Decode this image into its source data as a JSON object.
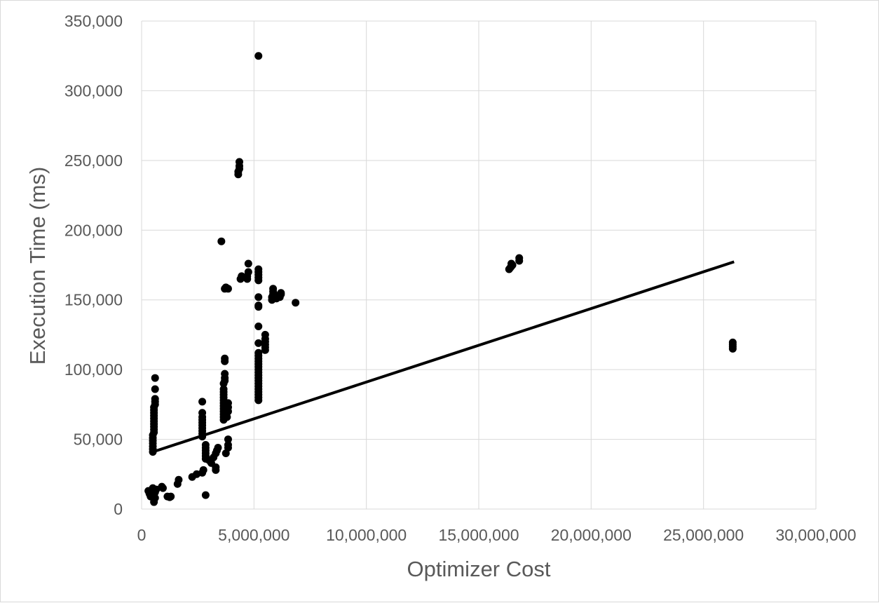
{
  "chart_data": {
    "type": "scatter",
    "title": "",
    "xlabel": "Optimizer Cost",
    "ylabel": "Execution Time (ms)",
    "xlim": [
      0,
      30000000
    ],
    "ylim": [
      0,
      350000
    ],
    "x_ticks": [
      0,
      5000000,
      10000000,
      15000000,
      20000000,
      25000000,
      30000000
    ],
    "x_tick_labels": [
      "0",
      "5,000,000",
      "10,000,000",
      "15,000,000",
      "20,000,000",
      "25,000,000",
      "30,000,000"
    ],
    "y_ticks": [
      0,
      50000,
      100000,
      150000,
      200000,
      250000,
      300000,
      350000
    ],
    "y_tick_labels": [
      "0",
      "50,000",
      "100,000",
      "150,000",
      "200,000",
      "250,000",
      "300,000",
      "350,000"
    ],
    "grid": true,
    "legend": "none",
    "colors": {
      "points": "#000000",
      "trendline": "#000000",
      "grid": "#d9d9d9",
      "text": "#595959"
    },
    "trendline": {
      "type": "linear",
      "points": [
        [
          500000,
          41000
        ],
        [
          26300000,
          177000
        ]
      ]
    },
    "points": [
      [
        300000,
        13000
      ],
      [
        350000,
        11000
      ],
      [
        400000,
        9000
      ],
      [
        450000,
        12000
      ],
      [
        500000,
        10000
      ],
      [
        500000,
        15000
      ],
      [
        550000,
        7000
      ],
      [
        550000,
        5000
      ],
      [
        600000,
        8000
      ],
      [
        650000,
        14000
      ],
      [
        600000,
        12000
      ],
      [
        900000,
        16000
      ],
      [
        950000,
        15000
      ],
      [
        1150000,
        9000
      ],
      [
        1250000,
        8500
      ],
      [
        1300000,
        9000
      ],
      [
        1600000,
        18000
      ],
      [
        1650000,
        21000
      ],
      [
        2250000,
        23000
      ],
      [
        2450000,
        25000
      ],
      [
        500000,
        41000
      ],
      [
        500000,
        43000
      ],
      [
        500000,
        45000
      ],
      [
        500000,
        47000
      ],
      [
        500000,
        49000
      ],
      [
        500000,
        51000
      ],
      [
        500000,
        53000
      ],
      [
        550000,
        55000
      ],
      [
        550000,
        57000
      ],
      [
        550000,
        59000
      ],
      [
        550000,
        61000
      ],
      [
        550000,
        63000
      ],
      [
        550000,
        65000
      ],
      [
        550000,
        67000
      ],
      [
        550000,
        69000
      ],
      [
        550000,
        71000
      ],
      [
        550000,
        73000
      ],
      [
        600000,
        75000
      ],
      [
        600000,
        77000
      ],
      [
        600000,
        79000
      ],
      [
        600000,
        86000
      ],
      [
        600000,
        94000
      ],
      [
        2700000,
        26000
      ],
      [
        2750000,
        28000
      ],
      [
        2700000,
        52000
      ],
      [
        2700000,
        54000
      ],
      [
        2700000,
        56000
      ],
      [
        2700000,
        58000
      ],
      [
        2700000,
        60000
      ],
      [
        2700000,
        62000
      ],
      [
        2700000,
        64000
      ],
      [
        2700000,
        66000
      ],
      [
        2700000,
        69000
      ],
      [
        2700000,
        77000
      ],
      [
        2850000,
        10000
      ],
      [
        2850000,
        36000
      ],
      [
        2850000,
        38000
      ],
      [
        2850000,
        40000
      ],
      [
        2850000,
        42000
      ],
      [
        2850000,
        44000
      ],
      [
        2850000,
        46000
      ],
      [
        3000000,
        35000
      ],
      [
        3100000,
        33000
      ],
      [
        3200000,
        37000
      ],
      [
        3300000,
        40000
      ],
      [
        3300000,
        28000
      ],
      [
        3300000,
        30000
      ],
      [
        3350000,
        42000
      ],
      [
        3400000,
        44000
      ],
      [
        3650000,
        64000
      ],
      [
        3650000,
        66000
      ],
      [
        3650000,
        68000
      ],
      [
        3650000,
        70000
      ],
      [
        3650000,
        72000
      ],
      [
        3650000,
        74000
      ],
      [
        3650000,
        76000
      ],
      [
        3650000,
        78000
      ],
      [
        3650000,
        80000
      ],
      [
        3650000,
        82000
      ],
      [
        3650000,
        84000
      ],
      [
        3650000,
        86000
      ],
      [
        3650000,
        90000
      ],
      [
        3700000,
        92000
      ],
      [
        3700000,
        94000
      ],
      [
        3700000,
        97000
      ],
      [
        3700000,
        106000
      ],
      [
        3700000,
        108000
      ],
      [
        3750000,
        40000
      ],
      [
        3850000,
        44000
      ],
      [
        3850000,
        46000
      ],
      [
        3850000,
        50000
      ],
      [
        3800000,
        66000
      ],
      [
        3850000,
        70000
      ],
      [
        3850000,
        73000
      ],
      [
        3850000,
        76000
      ],
      [
        3550000,
        192000
      ],
      [
        3700000,
        158000
      ],
      [
        3750000,
        159000
      ],
      [
        3850000,
        158000
      ],
      [
        4300000,
        240000
      ],
      [
        4300000,
        242000
      ],
      [
        4350000,
        244000
      ],
      [
        4350000,
        246000
      ],
      [
        4350000,
        249000
      ],
      [
        4400000,
        165000
      ],
      [
        4450000,
        167000
      ],
      [
        4700000,
        165000
      ],
      [
        4700000,
        167000
      ],
      [
        4750000,
        170000
      ],
      [
        4750000,
        176000
      ],
      [
        5200000,
        78000
      ],
      [
        5200000,
        80000
      ],
      [
        5200000,
        82000
      ],
      [
        5200000,
        84000
      ],
      [
        5200000,
        86000
      ],
      [
        5200000,
        88000
      ],
      [
        5200000,
        90000
      ],
      [
        5200000,
        92000
      ],
      [
        5200000,
        94000
      ],
      [
        5200000,
        96000
      ],
      [
        5200000,
        98000
      ],
      [
        5200000,
        100000
      ],
      [
        5200000,
        102000
      ],
      [
        5200000,
        104000
      ],
      [
        5200000,
        106000
      ],
      [
        5200000,
        108000
      ],
      [
        5200000,
        110000
      ],
      [
        5200000,
        112000
      ],
      [
        5200000,
        119000
      ],
      [
        5200000,
        131000
      ],
      [
        5200000,
        145000
      ],
      [
        5200000,
        146000
      ],
      [
        5200000,
        152000
      ],
      [
        5200000,
        164000
      ],
      [
        5200000,
        166000
      ],
      [
        5200000,
        168000
      ],
      [
        5200000,
        170000
      ],
      [
        5200000,
        172000
      ],
      [
        5200000,
        325000
      ],
      [
        5500000,
        114000
      ],
      [
        5500000,
        116000
      ],
      [
        5500000,
        118000
      ],
      [
        5500000,
        120000
      ],
      [
        5500000,
        122000
      ],
      [
        5500000,
        125000
      ],
      [
        5800000,
        150000
      ],
      [
        5800000,
        152000
      ],
      [
        5850000,
        154000
      ],
      [
        5850000,
        156000
      ],
      [
        5850000,
        158000
      ],
      [
        6000000,
        151000
      ],
      [
        6050000,
        153000
      ],
      [
        6150000,
        152000
      ],
      [
        6200000,
        154000
      ],
      [
        6200000,
        155000
      ],
      [
        6850000,
        148000
      ],
      [
        16350000,
        172000
      ],
      [
        16400000,
        173000
      ],
      [
        16450000,
        174000
      ],
      [
        16500000,
        175000
      ],
      [
        16450000,
        176000
      ],
      [
        16800000,
        178000
      ],
      [
        16800000,
        180000
      ],
      [
        26300000,
        115000
      ],
      [
        26300000,
        116500
      ],
      [
        26300000,
        118000
      ],
      [
        26300000,
        119500
      ]
    ]
  }
}
